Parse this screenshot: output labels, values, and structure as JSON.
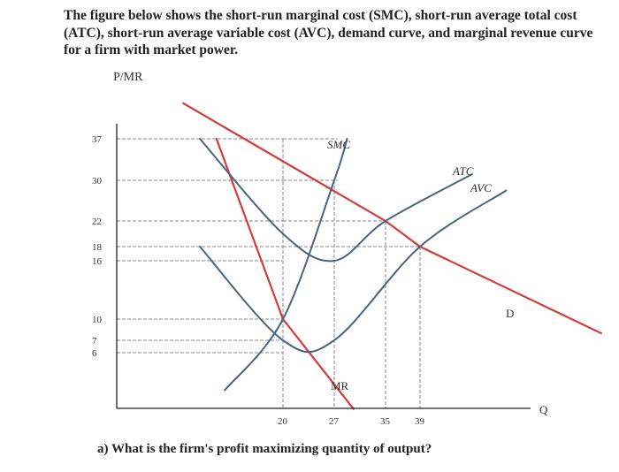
{
  "intro": {
    "line1": "The figure below shows the short-run marginal cost (SMC), short-run average total cost",
    "line2": "(ATC), short-run average variable cost (AVC), demand curve, and marginal revenue curve",
    "line3": "for a firm with market power."
  },
  "question": "a) What is the firm's profit maximizing quantity of output?",
  "colors": {
    "demand_mr": "#d63a3a",
    "cost_curves": "#4a6380",
    "axis": "#222222",
    "guide": "#888888"
  },
  "chart_data": {
    "type": "line",
    "title": "",
    "xlabel": "Q",
    "ylabel": "P/MR",
    "x_ticks": [
      "20",
      "27",
      "35",
      "39"
    ],
    "y_ticks": [
      "37",
      "30",
      "22",
      "18",
      "16",
      "10",
      "7",
      "6"
    ],
    "x_tick_values": [
      20,
      27,
      35,
      39
    ],
    "y_tick_values": [
      37,
      30,
      22,
      18,
      16,
      10,
      7,
      6
    ],
    "series": [
      {
        "name": "D",
        "values": [
          [
            8,
            43
          ],
          [
            35,
            22
          ],
          [
            39,
            18
          ],
          [
            60,
            8
          ]
        ]
      },
      {
        "name": "MR",
        "values": [
          [
            12,
            37
          ],
          [
            20,
            10
          ],
          [
            30,
            0
          ]
        ]
      },
      {
        "name": "SMC",
        "values": [
          [
            13,
            2
          ],
          [
            20,
            10
          ],
          [
            27,
            30
          ],
          [
            29,
            37
          ]
        ]
      },
      {
        "name": "ATC",
        "values": [
          [
            10,
            37
          ],
          [
            20,
            20
          ],
          [
            27,
            16
          ],
          [
            35,
            22
          ],
          [
            45,
            31
          ]
        ]
      },
      {
        "name": "AVC",
        "values": [
          [
            10,
            18
          ],
          [
            20,
            7
          ],
          [
            27,
            7
          ],
          [
            39,
            18
          ],
          [
            49,
            28
          ]
        ]
      }
    ],
    "annotations": {
      "smc_label": "SMC",
      "atc_label": "ATC",
      "avc_label": "AVC",
      "mr_label": "MR",
      "d_label": "D"
    }
  }
}
